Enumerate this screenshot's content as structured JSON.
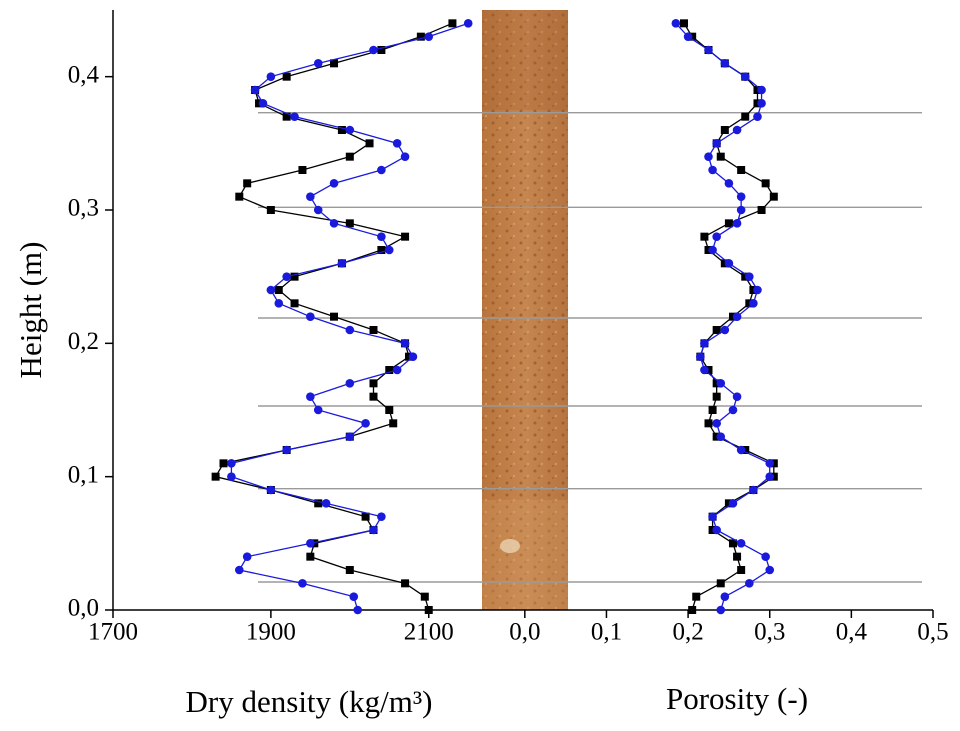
{
  "chart_data": [
    {
      "type": "line",
      "xlabel": "Dry density (kg/m³)",
      "ylabel": "Height (m)",
      "xlim": [
        1700,
        2170
      ],
      "xticks": [
        1700,
        1900,
        2100
      ],
      "ylim": [
        0,
        0.45
      ],
      "yticks": [
        {
          "value": 0,
          "label": "0,0"
        },
        {
          "value": 0.1,
          "label": "0,1"
        },
        {
          "value": 0.2,
          "label": "0,2"
        },
        {
          "value": 0.3,
          "label": "0,3"
        },
        {
          "value": 0.4,
          "label": "0,4"
        }
      ],
      "reference_lines": [
        0.021,
        0.091,
        0.153,
        0.219,
        0.302,
        0.373
      ],
      "y": [
        0,
        0.01,
        0.02,
        0.03,
        0.04,
        0.05,
        0.06,
        0.07,
        0.08,
        0.09,
        0.1,
        0.11,
        0.12,
        0.13,
        0.14,
        0.15,
        0.16,
        0.17,
        0.18,
        0.19,
        0.2,
        0.21,
        0.22,
        0.23,
        0.24,
        0.25,
        0.26,
        0.27,
        0.28,
        0.29,
        0.3,
        0.31,
        0.32,
        0.33,
        0.34,
        0.35,
        0.36,
        0.37,
        0.38,
        0.39,
        0.4,
        0.41,
        0.42,
        0.43,
        0.44
      ],
      "series": [
        {
          "color": "#000000",
          "marker": "square",
          "values": [
            2100,
            2095,
            2070,
            2000,
            1950,
            1955,
            2030,
            2020,
            1960,
            1900,
            1830,
            1840,
            1920,
            2000,
            2055,
            2050,
            2030,
            2030,
            2050,
            2075,
            2070,
            2030,
            1980,
            1930,
            1910,
            1930,
            1990,
            2040,
            2070,
            2000,
            1900,
            1860,
            1870,
            1940,
            2000,
            2025,
            1990,
            1920,
            1885,
            1880,
            1920,
            1980,
            2040,
            2090,
            2130
          ]
        },
        {
          "color": "#1a1adc",
          "marker": "circle",
          "values": [
            2010,
            2005,
            1940,
            1860,
            1870,
            1950,
            2030,
            2040,
            1970,
            1900,
            1850,
            1850,
            1920,
            2000,
            2020,
            1960,
            1950,
            2000,
            2060,
            2080,
            2070,
            2000,
            1950,
            1910,
            1900,
            1920,
            1990,
            2050,
            2040,
            1980,
            1960,
            1950,
            1980,
            2040,
            2070,
            2060,
            2000,
            1930,
            1890,
            1880,
            1900,
            1960,
            2030,
            2100,
            2150
          ]
        }
      ]
    },
    {
      "type": "line",
      "xlabel": "Porosity (-)",
      "xlim": [
        -0.05,
        0.5
      ],
      "xticks": [
        {
          "value": 0,
          "label": "0,0"
        },
        {
          "value": 0.1,
          "label": "0,1"
        },
        {
          "value": 0.2,
          "label": "0,2"
        },
        {
          "value": 0.3,
          "label": "0,3"
        },
        {
          "value": 0.4,
          "label": "0,4"
        },
        {
          "value": 0.5,
          "label": "0,5"
        }
      ],
      "y": [
        0,
        0.01,
        0.02,
        0.03,
        0.04,
        0.05,
        0.06,
        0.07,
        0.08,
        0.09,
        0.1,
        0.11,
        0.12,
        0.13,
        0.14,
        0.15,
        0.16,
        0.17,
        0.18,
        0.19,
        0.2,
        0.21,
        0.22,
        0.23,
        0.24,
        0.25,
        0.26,
        0.27,
        0.28,
        0.29,
        0.3,
        0.31,
        0.32,
        0.33,
        0.34,
        0.35,
        0.36,
        0.37,
        0.38,
        0.39,
        0.4,
        0.41,
        0.42,
        0.43,
        0.44
      ],
      "series": [
        {
          "color": "#000000",
          "marker": "square",
          "values": [
            0.205,
            0.21,
            0.24,
            0.265,
            0.26,
            0.255,
            0.23,
            0.23,
            0.25,
            0.28,
            0.305,
            0.305,
            0.27,
            0.235,
            0.225,
            0.23,
            0.235,
            0.235,
            0.225,
            0.215,
            0.22,
            0.235,
            0.255,
            0.275,
            0.28,
            0.27,
            0.245,
            0.225,
            0.22,
            0.25,
            0.29,
            0.305,
            0.295,
            0.265,
            0.24,
            0.235,
            0.245,
            0.27,
            0.285,
            0.285,
            0.27,
            0.245,
            0.225,
            0.205,
            0.195
          ]
        },
        {
          "color": "#1a1adc",
          "marker": "circle",
          "values": [
            0.24,
            0.245,
            0.275,
            0.3,
            0.295,
            0.265,
            0.235,
            0.23,
            0.255,
            0.28,
            0.3,
            0.3,
            0.265,
            0.24,
            0.235,
            0.255,
            0.26,
            0.24,
            0.22,
            0.215,
            0.22,
            0.245,
            0.26,
            0.28,
            0.285,
            0.275,
            0.25,
            0.23,
            0.235,
            0.26,
            0.265,
            0.265,
            0.25,
            0.23,
            0.225,
            0.235,
            0.26,
            0.285,
            0.29,
            0.29,
            0.27,
            0.245,
            0.225,
            0.2,
            0.185
          ]
        }
      ]
    }
  ]
}
